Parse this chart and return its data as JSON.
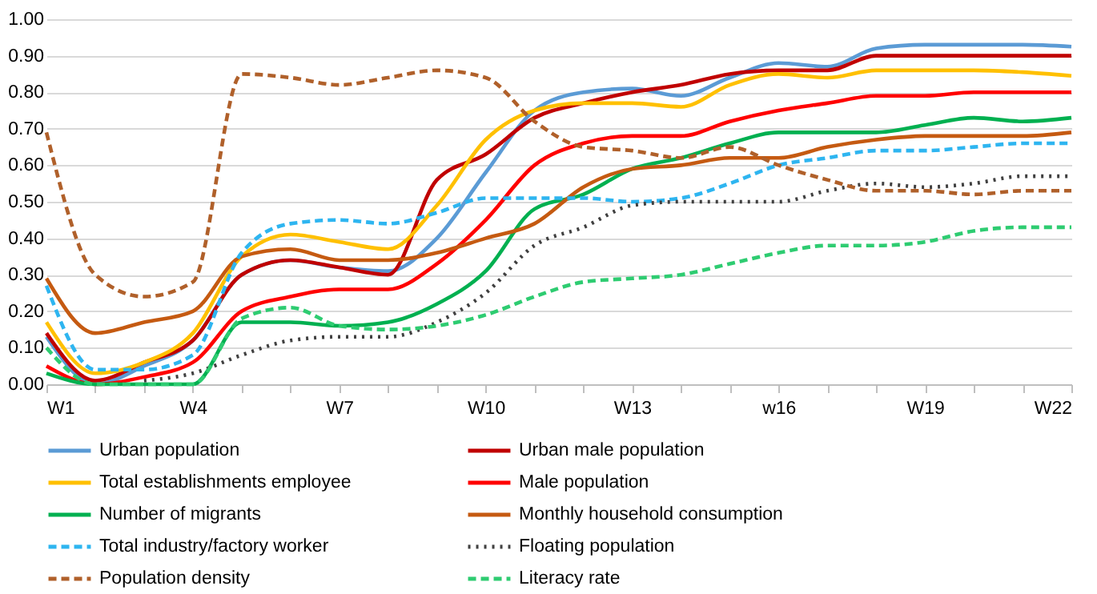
{
  "chart_data": {
    "type": "line",
    "categories": [
      "W1",
      null,
      null,
      "W4",
      null,
      null,
      "W7",
      null,
      null,
      "W10",
      null,
      null,
      "W13",
      null,
      null,
      "w16",
      null,
      null,
      "W19",
      null,
      null,
      "W22"
    ],
    "ylim": [
      0,
      1
    ],
    "yticks": [
      {
        "value": 0,
        "label": "0.00"
      },
      {
        "value": 0.1,
        "label": "0.10"
      },
      {
        "value": 0.2,
        "label": "0.20"
      },
      {
        "value": 0.3,
        "label": "0.30"
      },
      {
        "value": 0.4,
        "label": "0.40"
      },
      {
        "value": 0.5,
        "label": "0.50"
      },
      {
        "value": 0.6,
        "label": "0.60"
      },
      {
        "value": 0.7,
        "label": "0.70"
      },
      {
        "value": 0.8,
        "label": "0.80"
      },
      {
        "value": 0.9,
        "label": "0.90"
      },
      {
        "value": 1,
        "label": "1.00"
      }
    ],
    "grid": "y",
    "legend": "bottom",
    "marker": "none",
    "series": [
      {
        "name": "Urban population",
        "color": "#5b9bd5",
        "line_style": "solid",
        "values": [
          0.13,
          0.0,
          0.05,
          0.12,
          0.3,
          0.34,
          0.32,
          0.31,
          0.4,
          0.58,
          0.75,
          0.8,
          0.81,
          0.79,
          0.84,
          0.88,
          0.87,
          0.92,
          0.93,
          0.93,
          0.93,
          0.925
        ]
      },
      {
        "name": "Urban male population",
        "color": "#c00000",
        "line_style": "solid",
        "values": [
          0.14,
          0.01,
          0.06,
          0.12,
          0.3,
          0.34,
          0.32,
          0.3,
          0.56,
          0.63,
          0.73,
          0.77,
          0.8,
          0.82,
          0.85,
          0.86,
          0.86,
          0.9,
          0.9,
          0.9,
          0.9,
          0.9
        ]
      },
      {
        "name": "Total establishments employee",
        "color": "#ffc000",
        "line_style": "solid",
        "values": [
          0.17,
          0.03,
          0.06,
          0.14,
          0.35,
          0.41,
          0.39,
          0.37,
          0.49,
          0.67,
          0.75,
          0.77,
          0.77,
          0.76,
          0.82,
          0.85,
          0.84,
          0.86,
          0.86,
          0.86,
          0.855,
          0.845
        ]
      },
      {
        "name": "Male population",
        "color": "#ff0000",
        "line_style": "solid",
        "values": [
          0.05,
          0.0,
          0.02,
          0.06,
          0.2,
          0.24,
          0.26,
          0.26,
          0.33,
          0.45,
          0.6,
          0.66,
          0.68,
          0.68,
          0.72,
          0.75,
          0.77,
          0.79,
          0.79,
          0.8,
          0.8,
          0.8
        ]
      },
      {
        "name": "Number of migrants",
        "color": "#00b050",
        "line_style": "solid",
        "values": [
          0.03,
          0.0,
          0.0,
          0.0,
          0.17,
          0.17,
          0.16,
          0.17,
          0.22,
          0.31,
          0.48,
          0.52,
          0.59,
          0.62,
          0.66,
          0.69,
          0.69,
          0.69,
          0.71,
          0.73,
          0.72,
          0.73
        ]
      },
      {
        "name": "Monthly household consumption",
        "color": "#c55a11",
        "line_style": "solid",
        "values": [
          0.29,
          0.14,
          0.17,
          0.2,
          0.35,
          0.37,
          0.34,
          0.34,
          0.36,
          0.4,
          0.44,
          0.54,
          0.59,
          0.6,
          0.62,
          0.62,
          0.65,
          0.67,
          0.68,
          0.68,
          0.68,
          0.69
        ]
      },
      {
        "name": "Total industry/factory worker",
        "color": "#2eb5f0",
        "line_style": "dashed",
        "values": [
          0.27,
          0.04,
          0.04,
          0.08,
          0.36,
          0.44,
          0.45,
          0.44,
          0.47,
          0.51,
          0.51,
          0.51,
          0.5,
          0.51,
          0.55,
          0.6,
          0.62,
          0.64,
          0.64,
          0.65,
          0.66,
          0.66
        ]
      },
      {
        "name": "Floating population",
        "color": "#404040",
        "line_style": "dotted",
        "values": [
          null,
          null,
          0.01,
          0.03,
          0.08,
          0.12,
          0.13,
          0.13,
          0.17,
          0.25,
          0.38,
          0.43,
          0.49,
          0.5,
          0.5,
          0.5,
          0.53,
          0.55,
          0.54,
          0.55,
          0.57,
          0.57
        ]
      },
      {
        "name": "Population density",
        "color": "#b0602a",
        "line_style": "dashed",
        "values": [
          0.69,
          0.3,
          0.24,
          0.28,
          0.85,
          0.84,
          0.82,
          0.84,
          0.86,
          0.84,
          0.72,
          0.65,
          0.64,
          0.62,
          0.65,
          0.6,
          0.56,
          0.53,
          0.53,
          0.52,
          0.53,
          0.53
        ]
      },
      {
        "name": "Literacy rate",
        "color": "#2ecc71",
        "line_style": "dashed",
        "values": [
          0.1,
          0.0,
          0.0,
          0.0,
          0.18,
          0.21,
          0.16,
          0.15,
          0.16,
          0.19,
          0.24,
          0.28,
          0.29,
          0.3,
          0.33,
          0.36,
          0.38,
          0.38,
          0.39,
          0.42,
          0.43,
          0.43
        ]
      }
    ]
  }
}
